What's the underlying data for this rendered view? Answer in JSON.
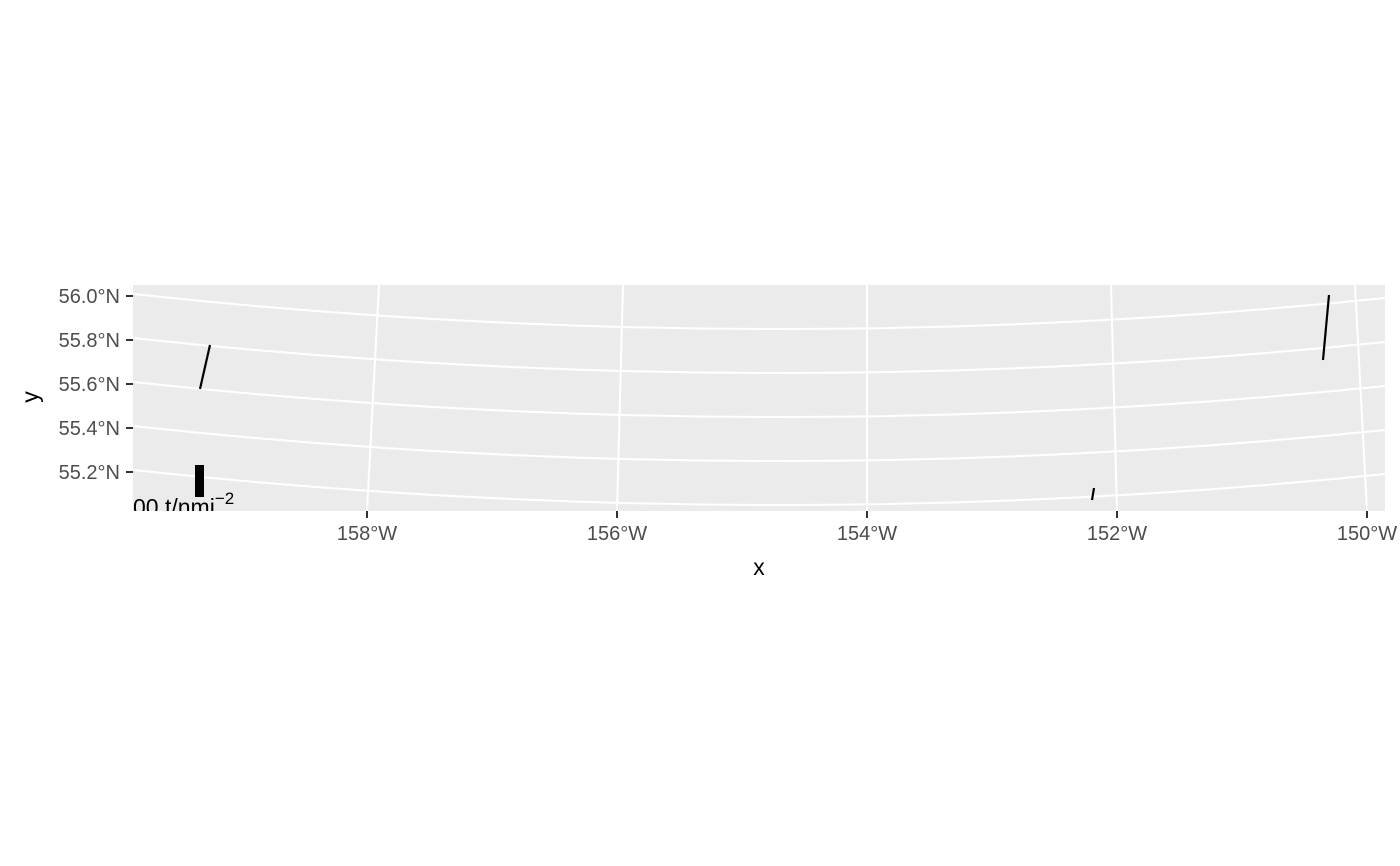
{
  "chart_data": {
    "type": "map",
    "xlabel": "x",
    "ylabel": "y",
    "x_ticks": [
      "158°W",
      "156°W",
      "154°W",
      "152°W",
      "150°W"
    ],
    "y_ticks": [
      "56.0°N",
      "55.8°N",
      "55.6°N",
      "55.4°N",
      "55.2°N"
    ],
    "xlim": [
      -160,
      -150
    ],
    "ylim": [
      55.1,
      56.0
    ],
    "grid": true,
    "legend": {
      "label": "00 t/nmi",
      "superscript": "−2",
      "placement": "bottom-left inside panel"
    },
    "vectors": [
      {
        "lon": -159.35,
        "lat": 55.6,
        "length_lat": 0.19,
        "slope_lon": 0.06
      },
      {
        "lon": -150.35,
        "lat": 55.8,
        "length_lat": 0.28,
        "slope_lon": 0.04
      },
      {
        "lon": -152.2,
        "lat": 55.1,
        "length_lat": 0.04,
        "slope_lon": 0.01
      }
    ],
    "colors": {
      "panel_background": "#ebebeb",
      "grid": "#ffffff",
      "vectors": "#000000"
    }
  }
}
